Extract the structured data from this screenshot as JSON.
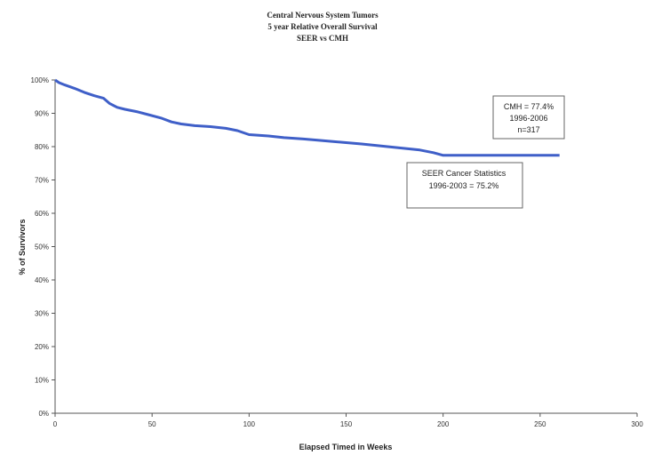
{
  "chart_data": {
    "type": "line",
    "title_lines": [
      "Central Nervous System Tumors",
      "5 year Relative Overall Survival",
      "SEER vs CMH"
    ],
    "xlabel": "Elapsed Timed in Weeks",
    "ylabel": "% of Survivors",
    "xlim": [
      0,
      300
    ],
    "ylim": [
      0,
      100
    ],
    "x_ticks": [
      0,
      50,
      100,
      150,
      200,
      250,
      300
    ],
    "y_ticks": [
      0,
      10,
      20,
      30,
      40,
      50,
      60,
      70,
      80,
      90,
      100
    ],
    "y_tick_labels": [
      "0%",
      "10%",
      "20%",
      "30%",
      "40%",
      "50%",
      "60%",
      "70%",
      "80%",
      "90%",
      "100%"
    ],
    "grid": false,
    "line_color": "#3f5fc8",
    "series": [
      {
        "x": [
          0,
          2,
          5,
          10,
          15,
          20,
          25,
          28,
          32,
          36,
          42,
          48,
          55,
          60,
          65,
          72,
          80,
          88,
          94,
          100,
          110,
          118,
          128,
          138,
          148,
          158,
          168,
          178,
          188,
          195,
          200,
          210,
          225,
          245,
          260
        ],
        "y": [
          100,
          99.2,
          98.5,
          97.5,
          96.3,
          95.3,
          94.5,
          93.0,
          91.8,
          91.2,
          90.5,
          89.6,
          88.5,
          87.4,
          86.8,
          86.3,
          86.0,
          85.5,
          84.8,
          83.6,
          83.2,
          82.7,
          82.3,
          81.8,
          81.3,
          80.8,
          80.2,
          79.6,
          79.0,
          78.2,
          77.4,
          77.4,
          77.4,
          77.4,
          77.4
        ]
      }
    ],
    "annotations": [
      {
        "lines": [
          "CMH  = 77.4%",
          "1996-2006",
          "n=317"
        ]
      },
      {
        "lines": [
          "SEER Cancer Statistics",
          "1996-2003 = 75.2%"
        ]
      }
    ]
  }
}
